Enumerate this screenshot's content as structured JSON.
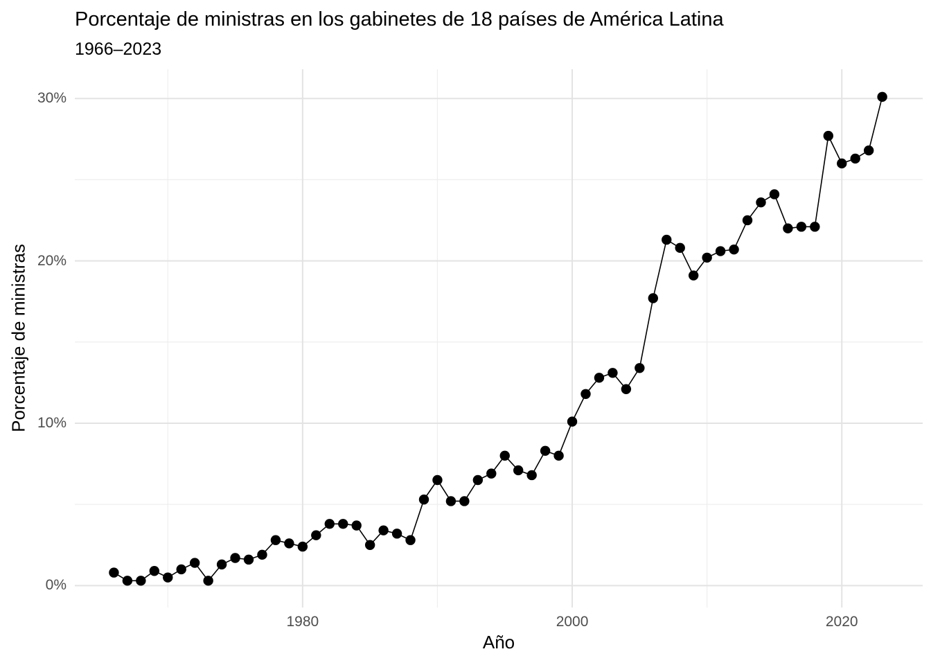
{
  "chart_data": {
    "type": "line",
    "title": "Porcentaje de ministras en los gabinetes de 18 países de América Latina",
    "subtitle": "1966–2023",
    "xlabel": "Año",
    "ylabel": "Porcentaje de ministras",
    "x": [
      1966,
      1967,
      1968,
      1969,
      1970,
      1971,
      1972,
      1973,
      1974,
      1975,
      1976,
      1977,
      1978,
      1979,
      1980,
      1981,
      1982,
      1983,
      1984,
      1985,
      1986,
      1987,
      1988,
      1989,
      1990,
      1991,
      1992,
      1993,
      1994,
      1995,
      1996,
      1997,
      1998,
      1999,
      2000,
      2001,
      2002,
      2003,
      2004,
      2005,
      2006,
      2007,
      2008,
      2009,
      2010,
      2011,
      2012,
      2013,
      2014,
      2015,
      2016,
      2017,
      2018,
      2019,
      2020,
      2021,
      2022,
      2023
    ],
    "values": [
      0.8,
      0.3,
      0.3,
      0.9,
      0.5,
      1.0,
      1.4,
      0.3,
      1.3,
      1.7,
      1.6,
      1.9,
      2.8,
      2.6,
      2.4,
      3.1,
      3.8,
      3.8,
      3.7,
      2.5,
      3.4,
      3.2,
      2.8,
      5.3,
      6.5,
      5.2,
      5.2,
      6.5,
      6.9,
      8.0,
      7.1,
      6.8,
      8.3,
      8.0,
      10.1,
      11.8,
      12.8,
      13.1,
      12.1,
      13.4,
      17.7,
      21.3,
      20.8,
      19.1,
      20.2,
      20.6,
      20.7,
      22.5,
      23.6,
      24.1,
      22.0,
      22.1,
      22.1,
      27.7,
      26.0,
      26.3,
      26.8,
      30.1
    ],
    "xlim": [
      1963.1,
      2026.0
    ],
    "ylim": [
      -1.35,
      31.8
    ],
    "x_major_ticks": [
      1980,
      2000,
      2020
    ],
    "x_tick_labels": [
      "1980",
      "2000",
      "2020"
    ],
    "x_minor_ticks": [
      1970,
      1990,
      2010
    ],
    "y_major_ticks": [
      0,
      10,
      20,
      30
    ],
    "y_tick_labels": [
      "0%",
      "10%",
      "20%",
      "30%"
    ],
    "y_minor_ticks": [
      5,
      15,
      25
    ],
    "grid": true,
    "legend": false,
    "colors": {
      "point": "#000000",
      "line": "#000000",
      "major_grid": "#e3e3e3",
      "minor_grid": "#eeeeee",
      "tick_text": "#4d4d4d",
      "title_text": "#000000",
      "background": "#ffffff"
    }
  }
}
